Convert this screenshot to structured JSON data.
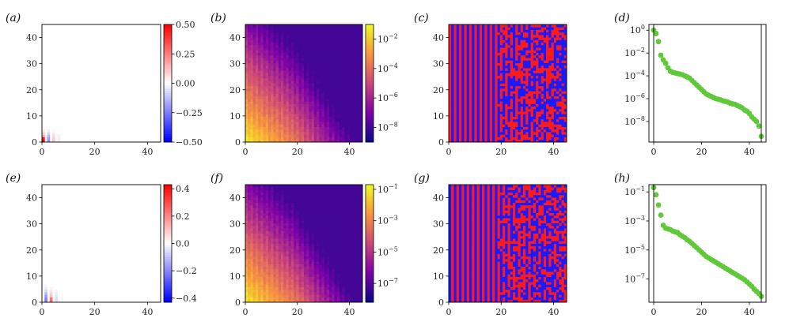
{
  "colors": {
    "diverging_neg": "#0000ff",
    "diverging_mid": "#ffffff",
    "diverging_pos": "#ff0000",
    "sign_positive": "#ff1a1a",
    "sign_negative": "#1a1aff",
    "dots": "#5fc93a"
  },
  "chart_data": [
    {
      "panel": "(a)",
      "type": "heatmap",
      "colormap": "bwr",
      "xlim": [
        0,
        45
      ],
      "ylim": [
        0,
        45
      ],
      "xticks": [
        "0",
        "20",
        "40"
      ],
      "yticks": [
        "0",
        "10",
        "20",
        "30",
        "40"
      ],
      "description_values": "signed amplitude concentrated near origin, peak at (0,0)",
      "value_range": [
        -0.5,
        0.5
      ],
      "peak_value": 0.5,
      "colorbar": {
        "ticks": [
          "0.50",
          "0.25",
          "0.00",
          "−0.25",
          "−0.50"
        ],
        "range": [
          -0.5,
          0.5
        ],
        "scale": "linear"
      }
    },
    {
      "panel": "(b)",
      "type": "heatmap",
      "colormap": "plasma",
      "scale": "log",
      "xlim": [
        0,
        45
      ],
      "ylim": [
        0,
        45
      ],
      "xticks": [
        "0",
        "20",
        "40"
      ],
      "yticks": [
        "0",
        "10",
        "20",
        "30",
        "40"
      ],
      "value_range": [
        1e-09,
        0.1
      ],
      "colorbar": {
        "ticks": [
          "10^-2",
          "10^-4",
          "10^-6",
          "10^-8"
        ],
        "range_exp": [
          -9,
          -1
        ],
        "scale": "log"
      }
    },
    {
      "panel": "(c)",
      "type": "heatmap",
      "colormap": "sign (red / blue)",
      "xlim": [
        0,
        45
      ],
      "ylim": [
        0,
        45
      ],
      "xticks": [
        "0",
        "20",
        "40"
      ],
      "yticks": [
        "0",
        "10",
        "20",
        "30",
        "40"
      ]
    },
    {
      "panel": "(d)",
      "type": "scatter",
      "yscale": "log",
      "xlim": [
        0,
        45
      ],
      "xticks": [
        "0",
        "20",
        "40"
      ],
      "yticks": [
        "10^0",
        "10^-2",
        "10^-4",
        "10^-6",
        "10^-8"
      ],
      "ylim_exp": [
        -9.8,
        0.5
      ],
      "x": [
        0,
        1,
        2,
        3,
        4,
        5,
        6,
        7,
        8,
        9,
        10,
        11,
        12,
        13,
        14,
        15,
        16,
        17,
        18,
        19,
        20,
        21,
        22,
        23,
        24,
        25,
        26,
        27,
        28,
        29,
        30,
        31,
        32,
        33,
        34,
        35,
        36,
        37,
        38,
        39,
        40,
        41,
        42,
        43,
        44,
        45
      ],
      "y_exp": [
        0.0,
        -0.3,
        -1.0,
        -2.2,
        -2.6,
        -2.9,
        -3.3,
        -3.6,
        -3.7,
        -3.75,
        -3.8,
        -3.85,
        -3.9,
        -4.0,
        -4.1,
        -4.2,
        -4.4,
        -4.6,
        -4.8,
        -5.0,
        -5.2,
        -5.4,
        -5.6,
        -5.7,
        -5.8,
        -5.9,
        -6.0,
        -6.05,
        -6.1,
        -6.2,
        -6.25,
        -6.3,
        -6.4,
        -6.45,
        -6.5,
        -6.6,
        -6.7,
        -6.8,
        -7.0,
        -7.1,
        -7.3,
        -7.6,
        -7.8,
        -8.0,
        -8.4,
        -9.3
      ]
    },
    {
      "panel": "(e)",
      "type": "heatmap",
      "colormap": "bwr",
      "xlim": [
        0,
        45
      ],
      "ylim": [
        0,
        45
      ],
      "xticks": [
        "0",
        "20",
        "40"
      ],
      "yticks": [
        "0",
        "10",
        "20",
        "30",
        "40"
      ],
      "value_range": [
        -0.43,
        0.43
      ],
      "peak_value": 0.43,
      "colorbar": {
        "ticks": [
          "0.4",
          "0.2",
          "0.0",
          "−0.2",
          "−0.4"
        ],
        "range": [
          -0.43,
          0.43
        ],
        "scale": "linear"
      }
    },
    {
      "panel": "(f)",
      "type": "heatmap",
      "colormap": "plasma",
      "scale": "log",
      "xlim": [
        0,
        45
      ],
      "ylim": [
        0,
        45
      ],
      "xticks": [
        "0",
        "20",
        "40"
      ],
      "yticks": [
        "0",
        "10",
        "20",
        "30",
        "40"
      ],
      "colorbar": {
        "ticks": [
          "10^-1",
          "10^-3",
          "10^-5",
          "10^-7"
        ],
        "range_exp": [
          -8.2,
          -0.7
        ],
        "scale": "log"
      }
    },
    {
      "panel": "(g)",
      "type": "heatmap",
      "colormap": "sign (red / blue)",
      "xlim": [
        0,
        45
      ],
      "ylim": [
        0,
        45
      ],
      "xticks": [
        "0",
        "20",
        "40"
      ],
      "yticks": [
        "0",
        "10",
        "20",
        "30",
        "40"
      ]
    },
    {
      "panel": "(h)",
      "type": "scatter",
      "yscale": "log",
      "xlim": [
        0,
        45
      ],
      "xticks": [
        "0",
        "20",
        "40"
      ],
      "yticks": [
        "10^-1",
        "10^-3",
        "10^-5",
        "10^-7"
      ],
      "ylim_exp": [
        -8.6,
        -0.5
      ],
      "x": [
        0,
        1,
        2,
        3,
        4,
        5,
        6,
        7,
        8,
        9,
        10,
        11,
        12,
        13,
        14,
        15,
        16,
        17,
        18,
        19,
        20,
        21,
        22,
        23,
        24,
        25,
        26,
        27,
        28,
        29,
        30,
        31,
        32,
        33,
        34,
        35,
        36,
        37,
        38,
        39,
        40,
        41,
        42,
        43,
        44,
        45
      ],
      "y_exp": [
        -0.7,
        -1.2,
        -1.9,
        -2.6,
        -3.3,
        -3.5,
        -3.55,
        -3.6,
        -3.7,
        -3.75,
        -3.8,
        -3.95,
        -4.05,
        -4.15,
        -4.3,
        -4.4,
        -4.55,
        -4.7,
        -4.85,
        -5.0,
        -5.15,
        -5.3,
        -5.45,
        -5.55,
        -5.65,
        -5.75,
        -5.85,
        -5.95,
        -6.05,
        -6.15,
        -6.25,
        -6.35,
        -6.45,
        -6.55,
        -6.65,
        -6.75,
        -6.85,
        -6.95,
        -7.05,
        -7.2,
        -7.35,
        -7.5,
        -7.7,
        -7.85,
        -8.0,
        -8.2
      ]
    }
  ]
}
